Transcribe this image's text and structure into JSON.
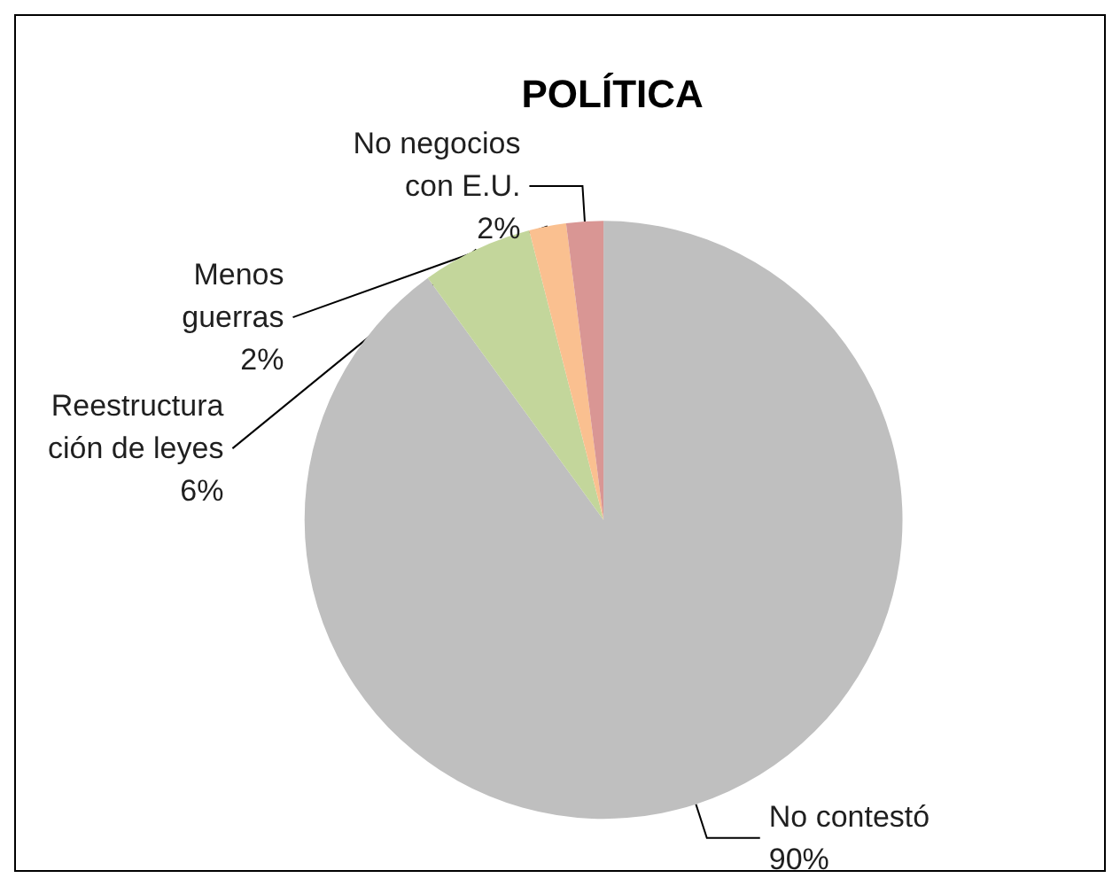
{
  "chart_data": {
    "type": "pie",
    "title": "POLÍTICA",
    "categories": [
      "No contestó",
      "Reestructura\nción de leyes",
      "Menos\nguerras",
      "No negocios\ncon E.U."
    ],
    "values": [
      90,
      6,
      2,
      2
    ],
    "value_labels": [
      "90%",
      "6%",
      "2%",
      "2%"
    ],
    "colors": [
      "#bfbfbf",
      "#c3d69b",
      "#fac090",
      "#d99694"
    ],
    "legend": false
  }
}
